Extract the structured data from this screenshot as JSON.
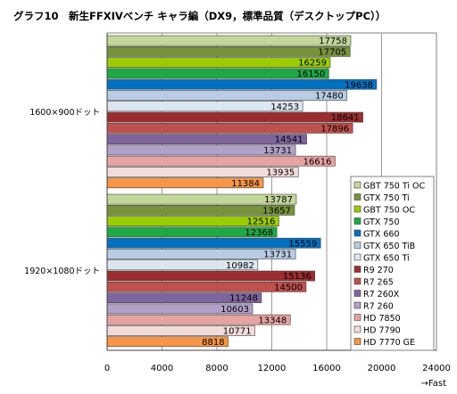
{
  "chart_data": {
    "type": "bar",
    "orientation": "horizontal",
    "title": "グラフ10　新生FFXIVベンチ キャラ編（DX9，標準品質（デスクトップPC））",
    "categories": [
      "1600×900ドット",
      "1920×1080ドット"
    ],
    "xlabel": "→Fast",
    "xlim": [
      0,
      24000
    ],
    "xticks": [
      0,
      4000,
      8000,
      12000,
      16000,
      20000,
      24000
    ],
    "grid": true,
    "legend_position": "right",
    "series": [
      {
        "name": "GBT 750 Ti OC",
        "color": "#c4d79b",
        "values": [
          17758,
          13787
        ]
      },
      {
        "name": "GTX 750 Ti",
        "color": "#76933c",
        "values": [
          17705,
          13657
        ]
      },
      {
        "name": "GBT 750 OC",
        "color": "#9acd00",
        "values": [
          16259,
          12516
        ]
      },
      {
        "name": "GTX 750",
        "color": "#1fa845",
        "values": [
          16150,
          12368
        ]
      },
      {
        "name": "GTX 660",
        "color": "#0070c0",
        "values": [
          19638,
          15559
        ]
      },
      {
        "name": "GTX 650 TiB",
        "color": "#b8cce4",
        "values": [
          17480,
          13731
        ]
      },
      {
        "name": "GTX 650 Ti",
        "color": "#dce6f1",
        "values": [
          14253,
          10982
        ]
      },
      {
        "name": "R9 270",
        "color": "#9b2d30",
        "values": [
          18641,
          15136
        ]
      },
      {
        "name": "R7 265",
        "color": "#c0504d",
        "values": [
          17896,
          14500
        ]
      },
      {
        "name": "R7 260X",
        "color": "#7f659e",
        "values": [
          14541,
          11248
        ]
      },
      {
        "name": "R7 260",
        "color": "#b1a0c7",
        "values": [
          13731,
          10603
        ]
      },
      {
        "name": "HD 7850",
        "color": "#e6a3a1",
        "values": [
          16616,
          13348
        ]
      },
      {
        "name": "HD 7790",
        "color": "#f2dcdb",
        "values": [
          13935,
          10771
        ]
      },
      {
        "name": "HD 7770 GE",
        "color": "#f79646",
        "values": [
          11384,
          8818
        ]
      }
    ]
  }
}
